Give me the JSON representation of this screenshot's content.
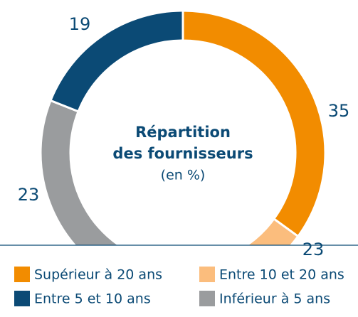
{
  "chart_data": {
    "type": "donut",
    "title_lines": [
      "Répartition",
      "des fournisseurs"
    ],
    "subtitle": "(en %)",
    "categories": [
      "Supérieur à 20 ans",
      "Entre 10 et 20 ans",
      "Inférieur à 5 ans",
      "Entre 5 et 10 ans"
    ],
    "values": [
      35,
      23,
      23,
      19
    ],
    "colors": [
      "#f28c00",
      "#fbbd7d",
      "#9a9c9e",
      "#0b4a75"
    ],
    "legend": "bottom"
  }
}
